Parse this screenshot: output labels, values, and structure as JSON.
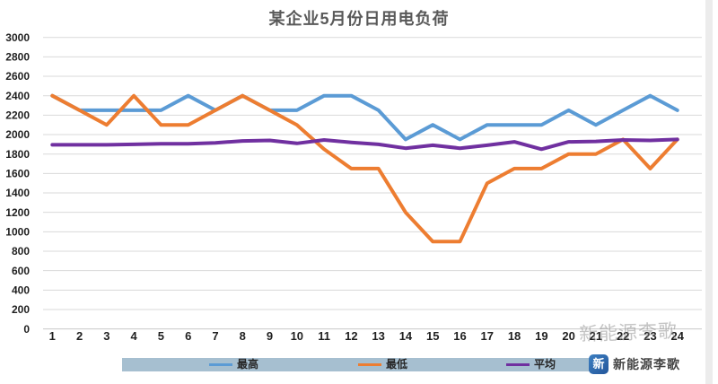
{
  "title": "某企业5月份日用电负荷",
  "legend": {
    "items": [
      {
        "label": "最高",
        "color": "#5B9BD5"
      },
      {
        "label": "最低",
        "color": "#ED7D31"
      },
      {
        "label": "平均",
        "color": "#7030A0"
      }
    ]
  },
  "watermark": {
    "text": "新能源李歌"
  },
  "brand": {
    "icon_label": "新",
    "name": "新能源李歌"
  },
  "colors": {
    "grid": "#d9d9d9",
    "axis_baseline": "#c8c8c8",
    "tick_text": "#1f1f1f",
    "title_text": "#595959",
    "legend_band": "#a6bfd0"
  },
  "chart_data": {
    "type": "line",
    "title": "某企业5月份日用电负荷",
    "x": [
      1,
      2,
      3,
      4,
      5,
      6,
      7,
      8,
      9,
      10,
      11,
      12,
      13,
      14,
      15,
      16,
      17,
      18,
      19,
      20,
      21,
      22,
      23,
      24
    ],
    "series": [
      {
        "name": "最高",
        "color": "#5B9BD5",
        "values": [
          2400,
          2250,
          2250,
          2250,
          2250,
          2400,
          2250,
          2400,
          2250,
          2250,
          2400,
          2400,
          2250,
          1950,
          2100,
          1950,
          2100,
          2100,
          2100,
          2250,
          2100,
          2250,
          2400,
          2250
        ]
      },
      {
        "name": "最低",
        "color": "#ED7D31",
        "values": [
          2400,
          2250,
          2100,
          2400,
          2100,
          2100,
          2250,
          2400,
          2250,
          2100,
          1850,
          1650,
          1650,
          1200,
          900,
          900,
          1500,
          1650,
          1650,
          1800,
          1800,
          1950,
          1650,
          1950
        ]
      },
      {
        "name": "平均",
        "color": "#7030A0",
        "values": [
          1895,
          1895,
          1895,
          1900,
          1905,
          1905,
          1915,
          1935,
          1940,
          1910,
          1945,
          1920,
          1900,
          1860,
          1890,
          1860,
          1890,
          1925,
          1850,
          1925,
          1930,
          1945,
          1940,
          1950
        ]
      }
    ],
    "xlabel": "",
    "ylabel": "",
    "ylim": [
      0,
      3000
    ],
    "ytick_step": 200,
    "yticks": [
      3000,
      2800,
      2600,
      2400,
      2200,
      2000,
      1800,
      1600,
      1400,
      1200,
      1000,
      800,
      600,
      400,
      200,
      0
    ],
    "grid": true,
    "legend_position": "bottom"
  }
}
